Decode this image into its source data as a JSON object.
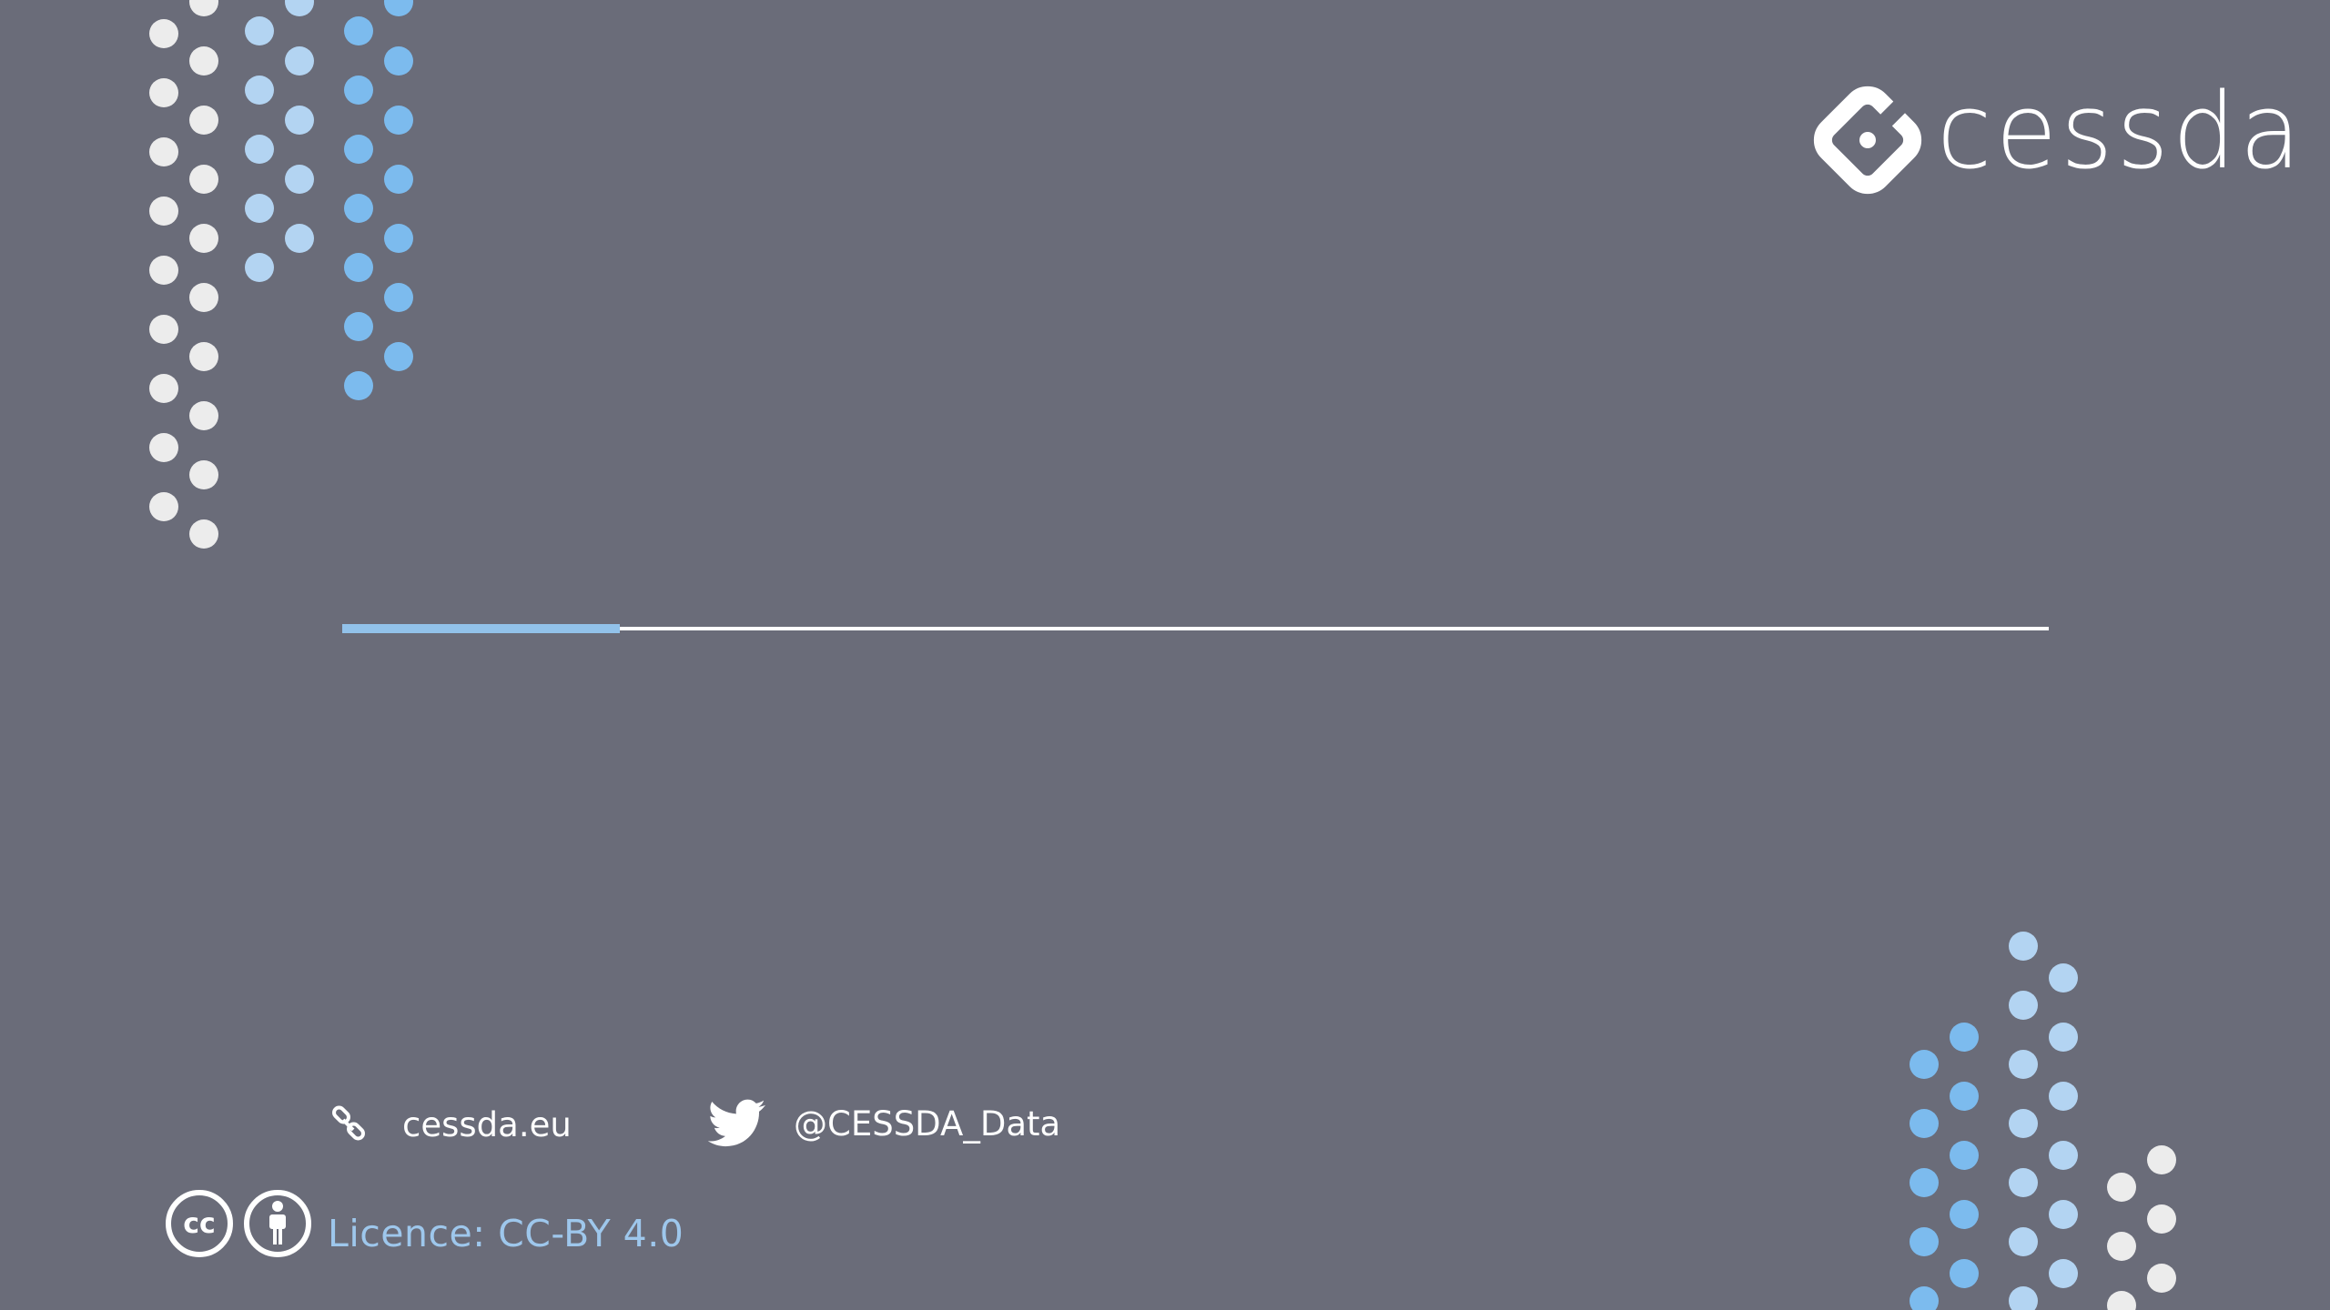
{
  "brand": {
    "name": "cessda",
    "logo_icon": "cessda-diamond-logo-icon"
  },
  "contacts": {
    "website": {
      "icon": "link-icon",
      "label": "cessda.eu"
    },
    "twitter": {
      "icon": "twitter-bird-icon",
      "label": "@CESSDA_Data"
    }
  },
  "licence": {
    "icons": [
      "creative-commons-icon",
      "attribution-person-icon"
    ],
    "label": "Licence: CC-BY 4.0"
  },
  "colors": {
    "background": "#6a6c79",
    "white_dot": "#ececec",
    "pale_blue_dot": "#b3d4f2",
    "blue_dot": "#7cbbee",
    "accent_blue": "#92c2ea",
    "text_white": "#ffffff",
    "licence_text": "#9ec7ec"
  }
}
